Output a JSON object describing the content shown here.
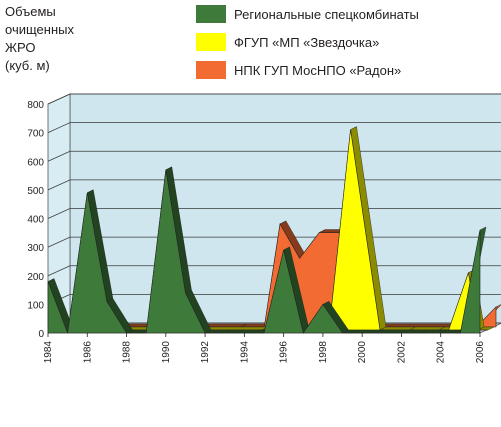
{
  "chart_data": {
    "type": "area",
    "ylabel": [
      "Объемы",
      "очищенных",
      "ЖРО",
      "(куб. м)"
    ],
    "ylim": [
      0,
      800
    ],
    "y_ticks": [
      0,
      100,
      200,
      300,
      400,
      500,
      600,
      700,
      800
    ],
    "x_ticks": [
      "1984",
      "1986",
      "1988",
      "1990",
      "1992",
      "1994",
      "1996",
      "1998",
      "2000",
      "2002",
      "2004",
      "2006"
    ],
    "grid": true,
    "view": "3d",
    "legend_position": "top-right",
    "series": [
      {
        "name": "НПК ГУП МосНПО «Радон»",
        "color": "#f26b33",
        "x": [
          1984,
          1993,
          1994.2,
          1995,
          1996,
          1997,
          1998,
          1999,
          2004,
          2005,
          2006
        ],
        "y": [
          0,
          0,
          0,
          360,
          240,
          330,
          330,
          0,
          0,
          0,
          70
        ]
      },
      {
        "name": "ФГУП «МП «Звездочка»",
        "color": "#ffff00",
        "x": [
          1984,
          1994.5,
          1995.5,
          1996.3,
          1997,
          1998,
          1999,
          2000.5,
          2002,
          2003.5,
          2004,
          2005,
          2005.5,
          2006
        ],
        "y": [
          0,
          0,
          25,
          0,
          0,
          60,
          700,
          0,
          0,
          0,
          0,
          200,
          0,
          0
        ]
      },
      {
        "name": "Региональные спецкомбинаты",
        "color": "#3e7a3a",
        "x": [
          1984,
          1985,
          1986,
          1987,
          1988,
          1989,
          1990,
          1991,
          1992,
          1993,
          1995,
          1996,
          1997,
          1998,
          1999,
          2003,
          2004,
          2005,
          2006
        ],
        "y": [
          180,
          0,
          490,
          110,
          0,
          0,
          570,
          140,
          0,
          0,
          0,
          290,
          0,
          100,
          0,
          0,
          0,
          0,
          360
        ]
      }
    ],
    "legend": [
      {
        "label": "Региональные спецкомбинаты",
        "color": "#3e7a3a"
      },
      {
        "label": "ФГУП «МП «Звездочка»",
        "color": "#ffff00"
      },
      {
        "label": "НПК ГУП МосНПО «Радон»",
        "color": "#f26b33"
      }
    ]
  }
}
